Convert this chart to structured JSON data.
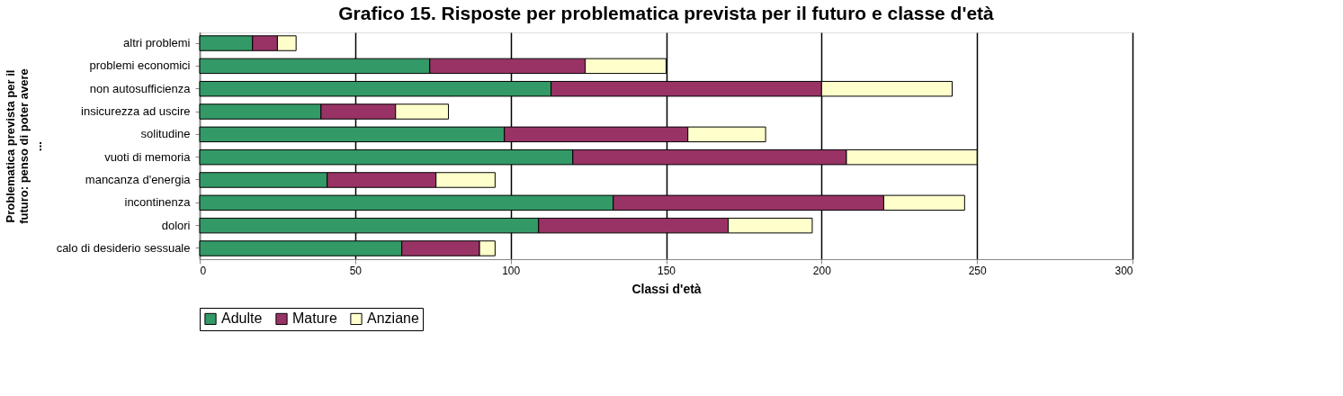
{
  "chart_data": {
    "type": "bar",
    "orientation": "horizontal",
    "stacked": true,
    "title": "Grafico 15. Risposte per problematica prevista per il futuro e classe d'età",
    "xlabel": "Classi d'età",
    "ylabel": "Problematica prevista per il futuro: penso di poter avere ...",
    "categories": [
      "altri problemi",
      "problemi economici",
      "non autosufficienza",
      "insicurezza ad uscire",
      "solitudine",
      "vuoti di memoria",
      "mancanza d'energia",
      "incontinenza",
      "dolori",
      "calo di desiderio sessuale"
    ],
    "series": [
      {
        "name": "Adulte",
        "color": "#339966",
        "values": [
          17,
          74,
          113,
          39,
          98,
          120,
          41,
          133,
          109,
          65
        ]
      },
      {
        "name": "Mature",
        "color": "#993366",
        "values": [
          8,
          50,
          87,
          24,
          59,
          88,
          35,
          87,
          61,
          25
        ]
      },
      {
        "name": "Anziane",
        "color": "#ffffcc",
        "values": [
          6,
          26,
          42,
          17,
          25,
          42,
          19,
          26,
          27,
          5
        ]
      }
    ],
    "xlim": [
      0,
      300
    ],
    "xticks": [
      0,
      50,
      100,
      150,
      200,
      250,
      300
    ],
    "grid": "x",
    "legend": "bottom"
  }
}
